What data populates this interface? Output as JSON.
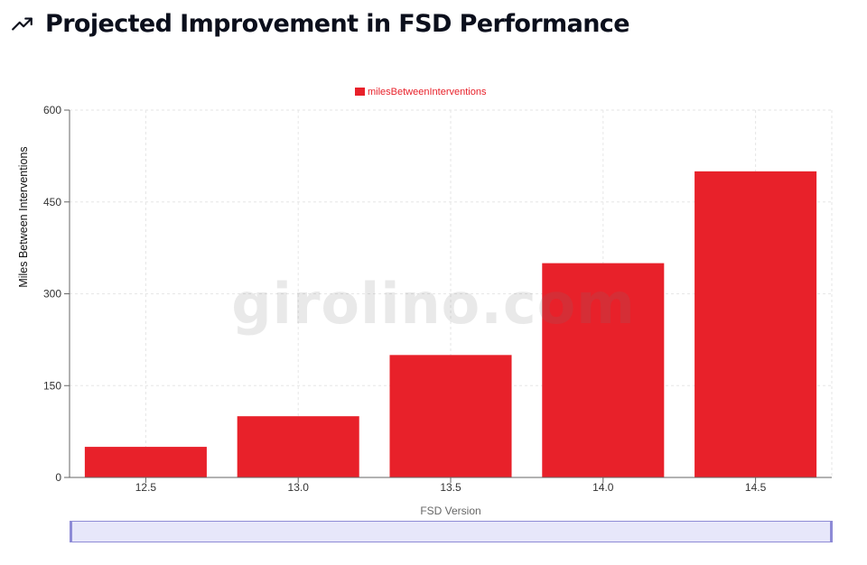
{
  "header": {
    "icon": "trending-up-icon",
    "title": "Projected Improvement in FSD Performance"
  },
  "watermark": "girolino.com",
  "colors": {
    "bar": "#e8212a",
    "legend_text": "#e8212a",
    "brush_fill": "#e7e7fa",
    "brush_stroke": "#8e8bd6"
  },
  "chart_data": {
    "type": "bar",
    "categories": [
      "12.5",
      "13.0",
      "13.5",
      "14.0",
      "14.5"
    ],
    "series": [
      {
        "name": "milesBetweenInterventions",
        "values": [
          50,
          100,
          200,
          350,
          500
        ]
      }
    ],
    "xlabel": "FSD Version",
    "ylabel": "Miles Between Interventions",
    "ylim": [
      0,
      600
    ],
    "yticks": [
      0,
      150,
      300,
      450,
      600
    ],
    "grid": true,
    "legend_position": "top-center"
  }
}
